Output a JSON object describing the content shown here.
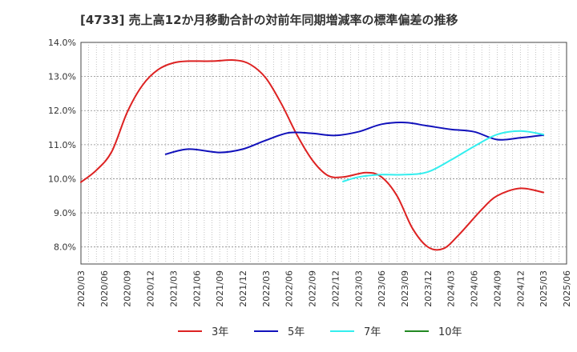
{
  "chart_data": {
    "type": "line",
    "title": "[4733]  売上高12か月移動合計の対前年同期増減率の標準偏差の推移",
    "xlabel": "",
    "ylabel": "",
    "ylim": [
      7.5,
      14.0
    ],
    "y_ticks": [
      "8.0%",
      "9.0%",
      "10.0%",
      "11.0%",
      "12.0%",
      "13.0%",
      "14.0%"
    ],
    "y_tick_values": [
      8,
      9,
      10,
      11,
      12,
      13,
      14
    ],
    "x_ticks": [
      "2020/03",
      "2020/06",
      "2020/09",
      "2020/12",
      "2021/03",
      "2021/06",
      "2021/09",
      "2021/12",
      "2022/03",
      "2022/06",
      "2022/09",
      "2022/12",
      "2023/03",
      "2023/06",
      "2023/09",
      "2023/12",
      "2024/03",
      "2024/06",
      "2024/09",
      "2024/12",
      "2025/03",
      "2025/06"
    ],
    "x_range": [
      "2020/03",
      "2025/06"
    ],
    "grid": true,
    "legend_position": "bottom",
    "series": [
      {
        "name": "3年",
        "color": "#dd2222",
        "points": [
          [
            "2020/03",
            9.9
          ],
          [
            "2020/05",
            10.25
          ],
          [
            "2020/07",
            10.8
          ],
          [
            "2020/09",
            11.95
          ],
          [
            "2020/11",
            12.75
          ],
          [
            "2021/01",
            13.2
          ],
          [
            "2021/03",
            13.4
          ],
          [
            "2021/05",
            13.45
          ],
          [
            "2021/08",
            13.45
          ],
          [
            "2021/11",
            13.48
          ],
          [
            "2022/01",
            13.35
          ],
          [
            "2022/03",
            12.95
          ],
          [
            "2022/05",
            12.2
          ],
          [
            "2022/07",
            11.3
          ],
          [
            "2022/09",
            10.55
          ],
          [
            "2022/11",
            10.1
          ],
          [
            "2023/01",
            10.05
          ],
          [
            "2023/04",
            10.18
          ],
          [
            "2023/06",
            10.05
          ],
          [
            "2023/08",
            9.5
          ],
          [
            "2023/10",
            8.55
          ],
          [
            "2023/12",
            8.0
          ],
          [
            "2024/02",
            7.95
          ],
          [
            "2024/04",
            8.35
          ],
          [
            "2024/07",
            9.1
          ],
          [
            "2024/09",
            9.5
          ],
          [
            "2024/12",
            9.72
          ],
          [
            "2025/03",
            9.6
          ]
        ]
      },
      {
        "name": "5年",
        "color": "#1111bb",
        "points": [
          [
            "2021/02",
            10.72
          ],
          [
            "2021/05",
            10.87
          ],
          [
            "2021/09",
            10.77
          ],
          [
            "2021/12",
            10.87
          ],
          [
            "2022/03",
            11.13
          ],
          [
            "2022/06",
            11.35
          ],
          [
            "2022/09",
            11.33
          ],
          [
            "2022/12",
            11.27
          ],
          [
            "2023/03",
            11.38
          ],
          [
            "2023/06",
            11.6
          ],
          [
            "2023/09",
            11.65
          ],
          [
            "2023/12",
            11.55
          ],
          [
            "2024/03",
            11.45
          ],
          [
            "2024/06",
            11.38
          ],
          [
            "2024/09",
            11.15
          ],
          [
            "2024/12",
            11.2
          ],
          [
            "2025/03",
            11.28
          ]
        ]
      },
      {
        "name": "7年",
        "color": "#33eeee",
        "points": [
          [
            "2023/01",
            9.92
          ],
          [
            "2023/03",
            10.05
          ],
          [
            "2023/06",
            10.12
          ],
          [
            "2023/09",
            10.12
          ],
          [
            "2023/12",
            10.2
          ],
          [
            "2024/03",
            10.55
          ],
          [
            "2024/06",
            10.95
          ],
          [
            "2024/09",
            11.3
          ],
          [
            "2024/12",
            11.4
          ],
          [
            "2025/03",
            11.3
          ]
        ]
      },
      {
        "name": "10年",
        "color": "#228822",
        "points": []
      }
    ]
  }
}
